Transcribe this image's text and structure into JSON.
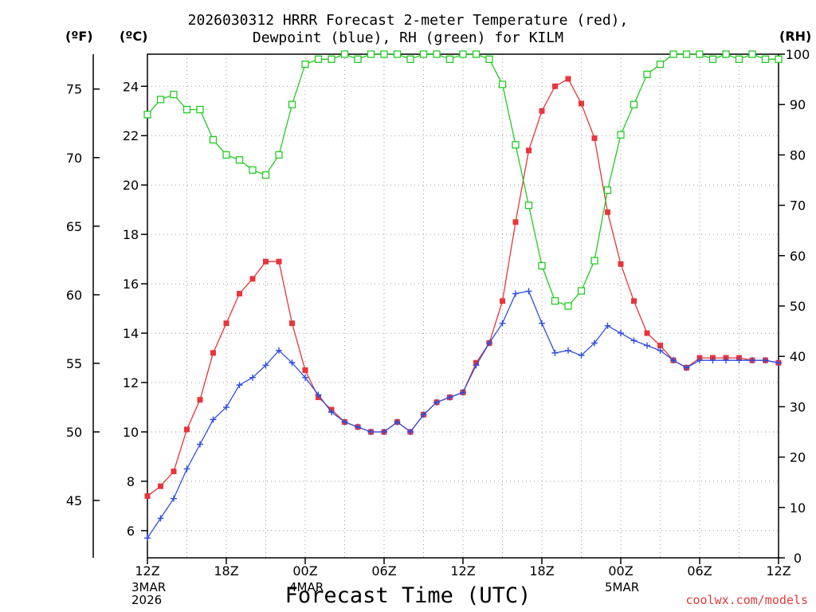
{
  "title": {
    "line1": "2026030312 HRRR Forecast 2-meter Temperature (red),",
    "line2": "Dewpoint (blue), RH (green) for KILM"
  },
  "axis_units": {
    "fahrenheit": "(ºF)",
    "celsius": "(ºC)",
    "rh": "(RH)"
  },
  "xlabel": "Forecast Time (UTC)",
  "credit": "coolwx.com/models",
  "colors": {
    "temperature": "#e8353a",
    "dewpoint": "#2f4fe0",
    "rh": "#22cc22",
    "grid": "#9a9a9a"
  },
  "chart_data": {
    "type": "line",
    "title": "2026030312 HRRR Forecast 2-meter Temperature (red), Dewpoint (blue), RH (green) for KILM",
    "xlabel": "Forecast Time (UTC)",
    "x_range_hours": [
      0,
      48
    ],
    "x_ticks": [
      {
        "hour": 0,
        "label": "12Z",
        "date": [
          "3MAR",
          "2026"
        ]
      },
      {
        "hour": 6,
        "label": "18Z",
        "date": []
      },
      {
        "hour": 12,
        "label": "00Z",
        "date": [
          "4MAR"
        ]
      },
      {
        "hour": 18,
        "label": "06Z",
        "date": []
      },
      {
        "hour": 24,
        "label": "12Z",
        "date": []
      },
      {
        "hour": 30,
        "label": "18Z",
        "date": []
      },
      {
        "hour": 36,
        "label": "00Z",
        "date": [
          "5MAR"
        ]
      },
      {
        "hour": 42,
        "label": "06Z",
        "date": []
      },
      {
        "hour": 48,
        "label": "12Z",
        "date": []
      }
    ],
    "left_axis_c": {
      "label": "(ºC)",
      "range": [
        4.9,
        25.3
      ],
      "ticks": [
        6,
        8,
        10,
        12,
        14,
        16,
        18,
        20,
        22,
        24
      ]
    },
    "left_axis_f": {
      "label": "(ºF)",
      "ticks": [
        45,
        50,
        55,
        60,
        65,
        70,
        75
      ]
    },
    "right_axis_rh": {
      "label": "(RH)",
      "range": [
        0,
        100
      ],
      "ticks": [
        0,
        10,
        20,
        30,
        40,
        50,
        60,
        70,
        80,
        90,
        100
      ]
    },
    "grid": true,
    "series": [
      {
        "name": "Temperature (°C)",
        "axis": "celsius",
        "marker": "filled-square",
        "values": [
          7.4,
          7.8,
          8.4,
          10.1,
          11.3,
          13.2,
          14.4,
          15.6,
          16.2,
          16.9,
          16.9,
          14.4,
          12.5,
          11.4,
          10.9,
          10.4,
          10.2,
          10.0,
          10.0,
          10.4,
          10.0,
          10.7,
          11.2,
          11.4,
          11.6,
          12.8,
          13.6,
          15.3,
          18.5,
          21.4,
          23.0,
          24.0,
          24.3,
          23.3,
          21.9,
          18.9,
          16.8,
          15.3,
          14.0,
          13.5,
          12.9,
          12.6,
          13.0,
          13.0,
          13.0,
          13.0,
          12.9,
          12.9,
          12.8
        ]
      },
      {
        "name": "Dewpoint (°C)",
        "axis": "celsius",
        "marker": "plus",
        "values": [
          5.7,
          6.5,
          7.3,
          8.5,
          9.5,
          10.5,
          11.0,
          11.9,
          12.2,
          12.7,
          13.3,
          12.8,
          12.2,
          11.5,
          10.8,
          10.4,
          10.2,
          10.0,
          10.0,
          10.4,
          10.0,
          10.7,
          11.2,
          11.4,
          11.6,
          12.7,
          13.6,
          14.4,
          15.6,
          15.7,
          14.4,
          13.2,
          13.3,
          13.1,
          13.6,
          14.3,
          14.0,
          13.7,
          13.5,
          13.3,
          12.9,
          12.6,
          12.9,
          12.9,
          12.9,
          12.9,
          12.9,
          12.9,
          12.8
        ]
      },
      {
        "name": "RH (%)",
        "axis": "rh",
        "marker": "open-square",
        "values": [
          88,
          91,
          92,
          89,
          89,
          83,
          80,
          79,
          77,
          76,
          80,
          90,
          98,
          99,
          99,
          100,
          99,
          100,
          100,
          100,
          99,
          100,
          100,
          99,
          100,
          100,
          99,
          94,
          82,
          70,
          58,
          51,
          50,
          53,
          59,
          73,
          84,
          90,
          96,
          98,
          100,
          100,
          100,
          99,
          100,
          99,
          100,
          99,
          99
        ]
      }
    ]
  }
}
